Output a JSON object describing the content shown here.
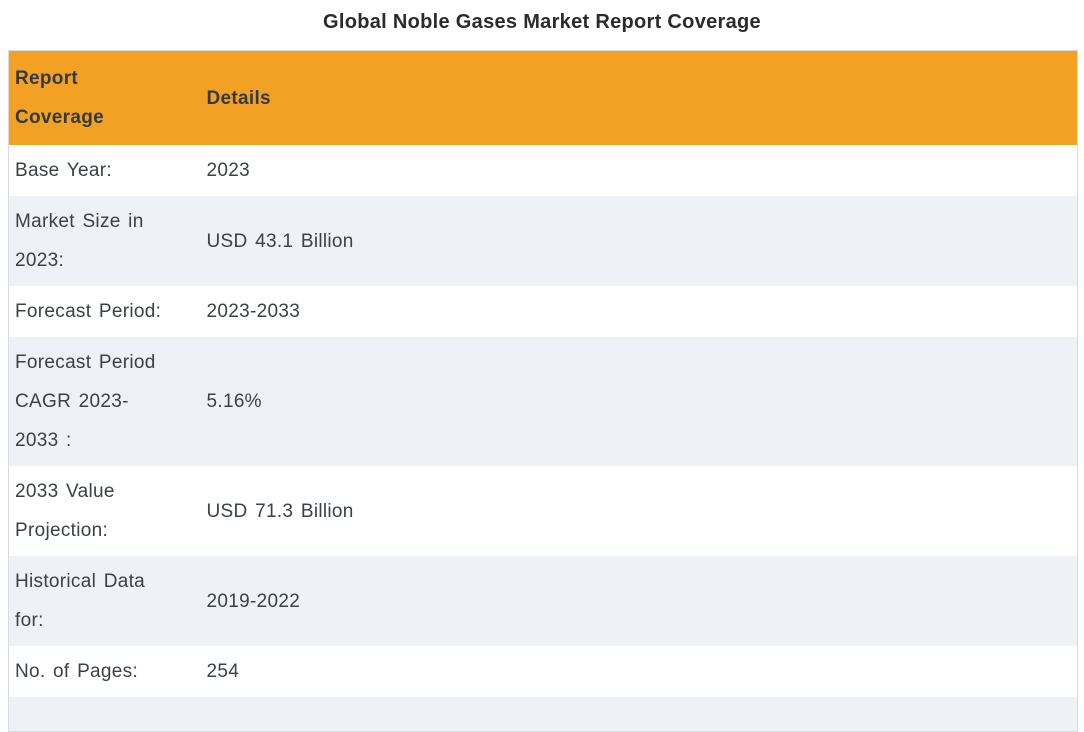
{
  "page": {
    "title": "Global Noble Gases Market Report Coverage"
  },
  "table": {
    "columns": [
      "Report Coverage",
      "Details"
    ],
    "rows": [
      {
        "label": "Base Year:",
        "value": "2023"
      },
      {
        "label": "Market Size in 2023:",
        "value": "USD 43.1 Billion"
      },
      {
        "label": "Forecast Period:",
        "value": "2023-2033"
      },
      {
        "label": "Forecast Period CAGR 2023-2033 :",
        "value": "5.16%"
      },
      {
        "label": "2033 Value Projection:",
        "value": "USD 71.3 Billion"
      },
      {
        "label": "Historical Data for:",
        "value": "2019-2022"
      },
      {
        "label": "No. of Pages:",
        "value": "254"
      }
    ],
    "partial_row_visible": true
  },
  "colors": {
    "header_bg": "#F2A124",
    "stripe_bg": "#EEF1F6",
    "text": "#3A4147",
    "title_text": "#2B2B2B",
    "header_text": "#333A40",
    "border": "#D7DBDF"
  }
}
